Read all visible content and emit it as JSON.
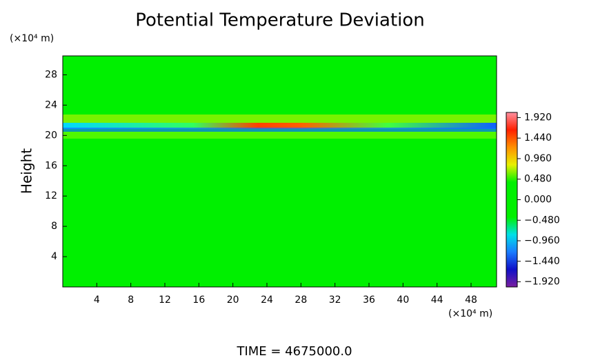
{
  "chart_data": {
    "type": "heatmap",
    "title": "Potential Temperature Deviation",
    "y_unit": "(×10⁴ m)",
    "y_label": "Height",
    "x_unit": "(×10⁴ m)",
    "footer": "TIME = 4675000.0",
    "xlim": [
      0,
      51
    ],
    "xticks": [
      4,
      8,
      12,
      16,
      20,
      24,
      28,
      32,
      36,
      40,
      44,
      48
    ],
    "ylim": [
      0,
      30.5
    ],
    "yticks": [
      4,
      8,
      12,
      16,
      20,
      24,
      28
    ],
    "clim": [
      -2.04,
      2.04
    ],
    "colormap": [
      "#7a1fa0",
      "#1010c8",
      "#1a7cff",
      "#00e0e8",
      "#00f000",
      "#00f000",
      "#00f000",
      "#e8f000",
      "#ff9000",
      "#ff2000",
      "#ff90a0"
    ],
    "cticks": [
      {
        "value": 1.92,
        "label": "1.920"
      },
      {
        "value": 1.44,
        "label": "1.440"
      },
      {
        "value": 0.96,
        "label": "0.960"
      },
      {
        "value": 0.48,
        "label": "0.480"
      },
      {
        "value": 0,
        "label": "0.000"
      },
      {
        "value": -0.48,
        "label": "−0.480"
      },
      {
        "value": -0.96,
        "label": "−0.960"
      },
      {
        "value": -1.44,
        "label": "−1.440"
      },
      {
        "value": -1.92,
        "label": "−1.920"
      }
    ]
  }
}
